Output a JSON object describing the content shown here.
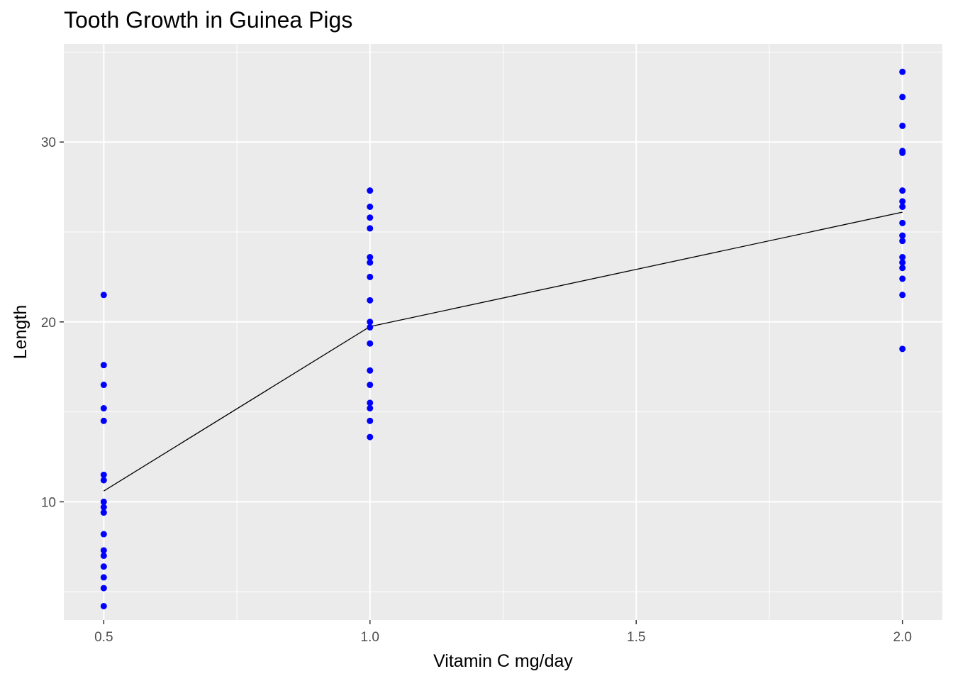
{
  "chart_data": {
    "type": "scatter",
    "title": "Tooth Growth in Guinea Pigs",
    "xlabel": "Vitamin C mg/day",
    "ylabel": "Length",
    "xlim": [
      0.425,
      2.075
    ],
    "ylim": [
      3.43,
      35.45
    ],
    "x_ticks": [
      0.5,
      1.0,
      1.5,
      2.0
    ],
    "x_tick_labels": [
      "0.5",
      "1.0",
      "1.5",
      "2.0"
    ],
    "y_ticks": [
      10,
      20,
      30
    ],
    "y_tick_labels": [
      "10",
      "20",
      "30"
    ],
    "grid": true,
    "point_color": "#0000ff",
    "line_color": "#000000",
    "panel_background": "#ebebeb",
    "gridline_color": "#ffffff",
    "series": [
      {
        "type": "scatter",
        "points": [
          [
            0.5,
            4.2
          ],
          [
            0.5,
            5.2
          ],
          [
            0.5,
            5.8
          ],
          [
            0.5,
            6.4
          ],
          [
            0.5,
            7.0
          ],
          [
            0.5,
            7.3
          ],
          [
            0.5,
            8.2
          ],
          [
            0.5,
            9.4
          ],
          [
            0.5,
            9.7
          ],
          [
            0.5,
            10.0
          ],
          [
            0.5,
            11.2
          ],
          [
            0.5,
            11.5
          ],
          [
            0.5,
            14.5
          ],
          [
            0.5,
            15.2
          ],
          [
            0.5,
            16.5
          ],
          [
            0.5,
            17.6
          ],
          [
            0.5,
            21.5
          ],
          [
            1.0,
            13.6
          ],
          [
            1.0,
            14.5
          ],
          [
            1.0,
            15.2
          ],
          [
            1.0,
            15.5
          ],
          [
            1.0,
            16.5
          ],
          [
            1.0,
            17.3
          ],
          [
            1.0,
            18.8
          ],
          [
            1.0,
            19.7
          ],
          [
            1.0,
            20.0
          ],
          [
            1.0,
            21.2
          ],
          [
            1.0,
            22.5
          ],
          [
            1.0,
            23.3
          ],
          [
            1.0,
            23.6
          ],
          [
            1.0,
            25.2
          ],
          [
            1.0,
            25.8
          ],
          [
            1.0,
            26.4
          ],
          [
            1.0,
            27.3
          ],
          [
            2.0,
            18.5
          ],
          [
            2.0,
            21.5
          ],
          [
            2.0,
            22.4
          ],
          [
            2.0,
            23.0
          ],
          [
            2.0,
            23.3
          ],
          [
            2.0,
            23.6
          ],
          [
            2.0,
            24.5
          ],
          [
            2.0,
            24.8
          ],
          [
            2.0,
            25.5
          ],
          [
            2.0,
            26.4
          ],
          [
            2.0,
            26.7
          ],
          [
            2.0,
            27.3
          ],
          [
            2.0,
            29.4
          ],
          [
            2.0,
            29.5
          ],
          [
            2.0,
            30.9
          ],
          [
            2.0,
            32.5
          ],
          [
            2.0,
            33.9
          ]
        ]
      },
      {
        "type": "line",
        "x": [
          0.5,
          1.0,
          2.0
        ],
        "y": [
          10.6,
          19.74,
          26.1
        ]
      }
    ]
  }
}
